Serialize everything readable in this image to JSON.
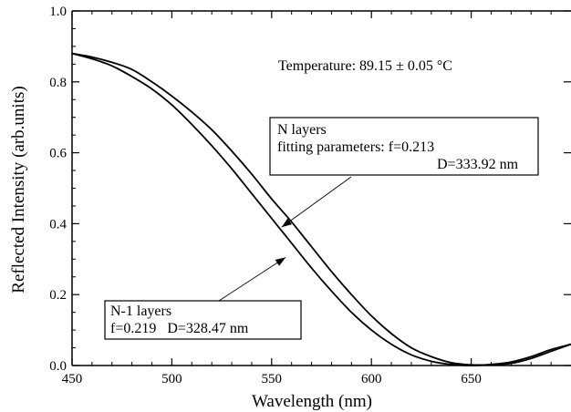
{
  "chart_data": {
    "type": "line",
    "title": "",
    "xlabel": "Wavelength (nm)",
    "ylabel": "Reflected Intensity (arb.units)",
    "xlim": [
      450,
      700
    ],
    "ylim": [
      0.0,
      1.0
    ],
    "x_ticks": [
      450,
      500,
      550,
      600,
      650
    ],
    "y_ticks": [
      0.0,
      0.2,
      0.4,
      0.6,
      0.8,
      1.0
    ],
    "y_tick_labels": [
      "0.0",
      "0.2",
      "0.4",
      "0.6",
      "0.8",
      "1.0"
    ],
    "grid": false,
    "series": [
      {
        "name": "N layers",
        "x": [
          450,
          460,
          470,
          480,
          490,
          500,
          510,
          520,
          530,
          540,
          550,
          560,
          570,
          580,
          590,
          600,
          610,
          620,
          630,
          640,
          650,
          660,
          670,
          680,
          690,
          700
        ],
        "y": [
          0.88,
          0.87,
          0.855,
          0.835,
          0.8,
          0.76,
          0.715,
          0.665,
          0.605,
          0.54,
          0.47,
          0.405,
          0.335,
          0.265,
          0.2,
          0.14,
          0.09,
          0.05,
          0.025,
          0.008,
          0.002,
          0.002,
          0.006,
          0.02,
          0.04,
          0.06
        ]
      },
      {
        "name": "N-1 layers",
        "x": [
          450,
          460,
          470,
          480,
          490,
          500,
          510,
          520,
          530,
          540,
          550,
          560,
          570,
          580,
          590,
          600,
          610,
          620,
          630,
          640,
          650,
          660,
          670,
          680,
          690,
          700
        ],
        "y": [
          0.88,
          0.865,
          0.845,
          0.815,
          0.78,
          0.735,
          0.68,
          0.62,
          0.555,
          0.485,
          0.415,
          0.345,
          0.275,
          0.21,
          0.15,
          0.1,
          0.06,
          0.03,
          0.012,
          0.003,
          0.0,
          0.003,
          0.01,
          0.025,
          0.045,
          0.06
        ]
      }
    ],
    "annotations": {
      "temperature": "Temperature: 89.15 ± 0.05 °C",
      "n_layers": {
        "line1": "N layers",
        "line2": "fitting parameters: f=0.213",
        "line3": "D=333.92 nm",
        "arrow_to": [
          555,
          0.39
        ]
      },
      "n1_layers": {
        "line1": "N-1 layers",
        "line2": "f=0.219   D=328.47 nm",
        "arrow_to": [
          557,
          0.305
        ]
      }
    },
    "colors": {
      "line": "#000000",
      "axis": "#000000"
    }
  }
}
